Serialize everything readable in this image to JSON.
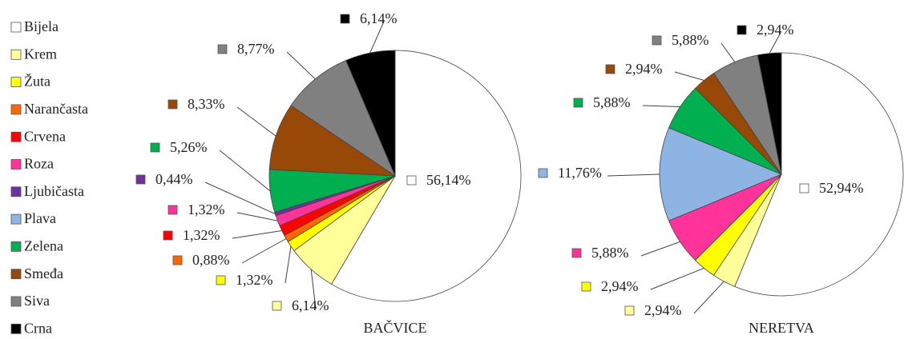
{
  "chart_data": [
    {
      "type": "pie",
      "title": "BAČVICE",
      "categories": [
        "Bijela",
        "Krem",
        "Žuta",
        "Narančasta",
        "Crvena",
        "Roza",
        "Ljubičasta",
        "Plava",
        "Zelena",
        "Smeđa",
        "Siva",
        "Crna"
      ],
      "colors": [
        "#ffffff",
        "#ffff99",
        "#ffff00",
        "#ff6600",
        "#ff0000",
        "#ff3399",
        "#7030a0",
        "#8eb4e3",
        "#00b050",
        "#984807",
        "#808080",
        "#000000"
      ],
      "values": [
        56.14,
        6.14,
        1.32,
        0.88,
        1.32,
        1.32,
        0.44,
        null,
        5.26,
        8.33,
        8.77,
        6.14
      ],
      "value_labels": [
        "56,14%",
        "6,14%",
        "1,32%",
        "0,88%",
        "1,32%",
        "1,32%",
        "0,44%",
        null,
        "5,26%",
        "8,33%",
        "8,77%",
        "6,14%"
      ]
    },
    {
      "type": "pie",
      "title": "NERETVA",
      "categories": [
        "Bijela",
        "Krem",
        "Žuta",
        "Narančasta",
        "Crvena",
        "Roza",
        "Ljubičasta",
        "Plava",
        "Zelena",
        "Smeđa",
        "Siva",
        "Crna"
      ],
      "colors": [
        "#ffffff",
        "#ffff99",
        "#ffff00",
        "#ff6600",
        "#ff0000",
        "#ff3399",
        "#7030a0",
        "#8eb4e3",
        "#00b050",
        "#984807",
        "#808080",
        "#000000"
      ],
      "values": [
        52.94,
        2.94,
        2.94,
        null,
        null,
        5.88,
        null,
        11.76,
        5.88,
        2.94,
        5.88,
        2.94
      ],
      "value_labels": [
        "52,94%",
        "2,94%",
        "2,94%",
        null,
        null,
        "5,88%",
        null,
        "11,76%",
        "5,88%",
        "2,94%",
        "5,88%",
        "2,94%"
      ]
    }
  ]
}
